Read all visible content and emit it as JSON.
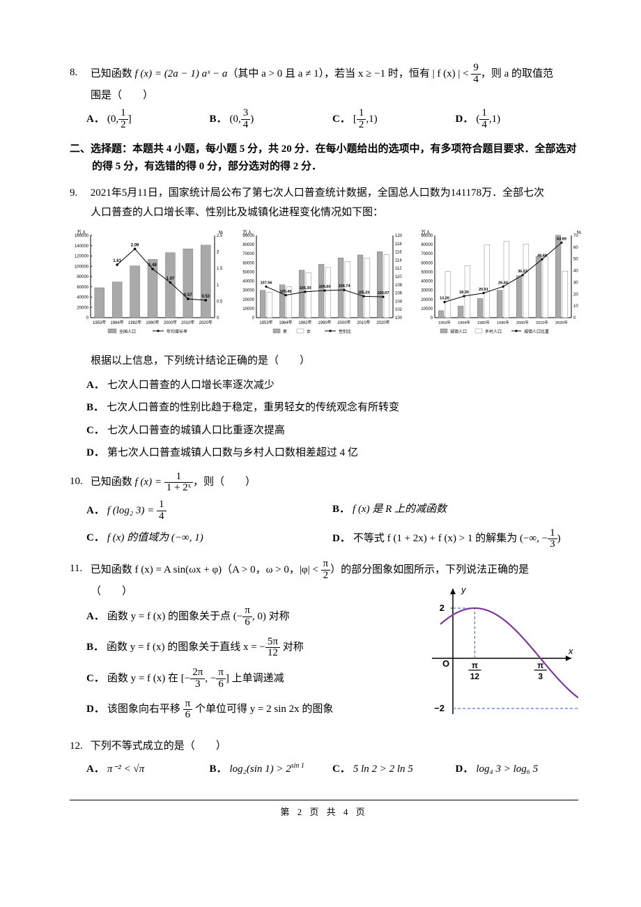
{
  "q8": {
    "num": "8.",
    "stem_prefix": "已知函数 ",
    "func": "f (x) = (2a − 1) aˣ − a",
    "cond1": "（其中 a > 0 且 a ≠ 1），若当 x ≥ −1 时，恒有 ",
    "ineq_lhs": "| f (x) | <",
    "ineq_frac_n": "9",
    "ineq_frac_d": "4",
    "stem_tail": "，则 a 的取值范",
    "line2": "围是（　　）",
    "opts": {
      "A": {
        "open": "(0,",
        "n": "1",
        "d": "2",
        "close": "]"
      },
      "B": {
        "open": "(0,",
        "n": "3",
        "d": "4",
        "close": ")"
      },
      "C": {
        "open": "[",
        "n": "1",
        "d": "2",
        "close": ",1)"
      },
      "D": {
        "open": "(",
        "n": "1",
        "d": "4",
        "close": ",1)"
      }
    }
  },
  "section2": "二、选择题：本题共 4 小题，每小题 5 分，共 20 分．在每小题给出的选项中，有多项符合题目要求．全部选对的得 5 分，有选错的得 0 分，部分选对的得 2 分．",
  "q9": {
    "num": "9.",
    "line1": "2021年5月11日，国家统计局公布了第七次人口普查统计数据，全国总人口数为141178万．全部七次",
    "line2": "人口普查的人口增长率、性别比及城镇化进程变化情况如下图：",
    "after": "根据以上信息，下列统计结论正确的是（　　）",
    "opts": {
      "A": "七次人口普查的人口增长率逐次减少",
      "B": "七次人口普查的性别比趋于稳定，重男轻女的传统观念有所转变",
      "C": "七次人口普查的城镇人口比重逐次提高",
      "D": "第七次人口普查城镇人口数与乡村人口数相差超过 4 亿"
    },
    "chart1": {
      "type": "bar+line",
      "y_left_label": "万人",
      "y_left_max": 160000,
      "y_left_step": 20000,
      "y_right_label": "%",
      "y_right_max": 2.5,
      "y_right_step": 0.5,
      "x": [
        "1953年",
        "1964年",
        "1982年",
        "1990年",
        "2000年",
        "2010年",
        "2020年"
      ],
      "bars": [
        58260,
        69458,
        100818,
        113368,
        126583,
        133972,
        141178
      ],
      "bar_color": "#a9a9a9",
      "line": [
        null,
        1.61,
        2.09,
        1.48,
        1.07,
        0.57,
        0.53
      ],
      "line_labels": [
        "",
        "1.61",
        "2.09",
        "1.48",
        "1.07",
        "0.57",
        "0.53"
      ],
      "line_extra_label_at_end": "2",
      "line_color": "#000",
      "legend": [
        "全国人口",
        "年均增长率"
      ]
    },
    "chart2": {
      "type": "grouped-bar+line",
      "y_left_label": "万人",
      "y_left_max": 90000,
      "y_left_step": 10000,
      "y_right_label": "",
      "y_right_min": 100,
      "y_right_max": 120,
      "y_right_step": 2,
      "x": [
        "1953年",
        "1964年",
        "1982年",
        "1990年",
        "2000年",
        "2010年",
        "2020年"
      ],
      "male": [
        30000,
        36000,
        52000,
        58500,
        65400,
        68700,
        72300
      ],
      "female": [
        28000,
        33800,
        49000,
        55000,
        61200,
        65300,
        68900
      ],
      "male_color": "#a9a9a9",
      "female_color": "#ffffff",
      "border": "#666",
      "line": [
        107.56,
        105.46,
        106.3,
        106.6,
        106.74,
        105.2,
        105.07
      ],
      "line_labels": [
        "107.56",
        "105.46",
        "106.30",
        "106.60",
        "106.74",
        "105.20",
        "105.07"
      ],
      "line_color": "#000",
      "legend": [
        "男",
        "女",
        "性别比"
      ]
    },
    "chart3": {
      "type": "grouped-bar+line",
      "y_left_label": "万人",
      "y_left_max": 90000,
      "y_left_step": 10000,
      "y_right_label": "%",
      "y_right_min": 0,
      "y_right_max": 70,
      "y_right_step": 10,
      "x": [
        "1953年",
        "1964年",
        "1982年",
        "1990年",
        "2000年",
        "2010年",
        "2020年"
      ],
      "urban": [
        7700,
        12700,
        21000,
        30000,
        46000,
        67000,
        90200
      ],
      "rural": [
        50500,
        56800,
        79800,
        83400,
        80700,
        67100,
        51000
      ],
      "urban_color": "#a9a9a9",
      "rural_color": "#ffffff",
      "border": "#666",
      "line": [
        13.26,
        18.3,
        20.91,
        26.44,
        36.22,
        49.68,
        63.89
      ],
      "line_labels": [
        "13.26",
        "18.30",
        "20.91",
        "26.44",
        "36.22",
        "49.68",
        "63.89"
      ],
      "line_color": "#000",
      "legend": [
        "城镇人口",
        "乡村人口",
        "城镇人口比重"
      ]
    }
  },
  "q10": {
    "num": "10.",
    "stem": "已知函数 ",
    "func_lhs": "f (x) =",
    "frac_n": "1",
    "frac_d": "1 + 2ˣ",
    "tail": "，则（　　）",
    "A_lhs": "f (log₂ 3) =",
    "A_n": "1",
    "A_d": "4",
    "B": "f (x) 是 R 上的减函数",
    "C": "f (x) 的值域为 (−∞, 1)",
    "D_pre": "不等式 f (1 + 2x) + f (x) > 1 的解集为 (−∞, −",
    "D_n": "1",
    "D_d": "3",
    "D_post": ")"
  },
  "q11": {
    "num": "11.",
    "stem_p1": "已知函数 f (x) = A sin(ωx + φ)（A > 0，ω > 0，|φ| < ",
    "phi_n": "π",
    "phi_d": "2",
    "stem_p2": "）的部分图象如图所示，下列说法正确的是",
    "blank": "（　　）",
    "A_pre": "函数 y = f (x) 的图象关于点 (−",
    "A_n": "π",
    "A_d": "6",
    "A_post": ", 0) 对称",
    "B_pre": "函数 y = f (x) 的图象关于直线 x = −",
    "B_n": "5π",
    "B_d": "12",
    "B_post": " 对称",
    "C_pre": "函数 y = f (x) 在 [−",
    "C1_n": "2π",
    "C1_d": "3",
    "C_mid": ", −",
    "C2_n": "π",
    "C2_d": "6",
    "C_post": "] 上单调递减",
    "D_pre": "该图象向右平移 ",
    "D_n": "π",
    "D_d": "6",
    "D_post": " 个单位可得 y = 2 sin 2x 的图象",
    "graph": {
      "y_top": 2,
      "y_bot": -2,
      "x_ticks": [
        "π/12",
        "π/3"
      ],
      "peak_x_label_n": "π",
      "peak_x_label_d": "12",
      "zero_x_label_n": "π",
      "zero_x_label_d": "3",
      "curve_color": "#7a3a94",
      "axis_color": "#000",
      "dash_color": "#4a7bdc"
    }
  },
  "q12": {
    "num": "12.",
    "stem": "下列不等式成立的是（　　）",
    "A": "π⁻² < √π",
    "B": "log₂(sin 1) > 2^{sin1}",
    "B_display_pre": "log₂(sin 1) > 2",
    "B_sup": "sin 1",
    "C": "5 ln 2 > 2 ln 5",
    "D": "log₄ 3 > log₆ 5"
  },
  "footer": "第 2 页 共 4 页"
}
